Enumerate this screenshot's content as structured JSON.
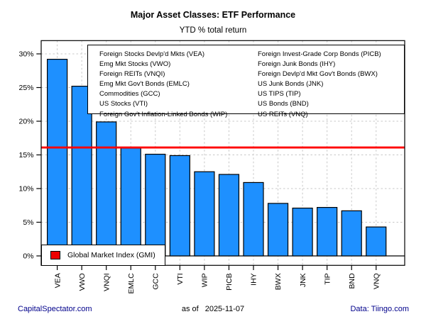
{
  "title": "Major Asset Classes: ETF Performance",
  "subtitle": "YTD % total return",
  "chart_data": {
    "type": "bar",
    "categories": [
      "VEA",
      "VWO",
      "VNQI",
      "EMLC",
      "GCC",
      "VTI",
      "WIP",
      "PICB",
      "IHY",
      "BWX",
      "JNK",
      "TIP",
      "BND",
      "VNQ"
    ],
    "values": [
      29.2,
      25.2,
      19.9,
      16.0,
      15.1,
      14.9,
      12.5,
      12.1,
      10.9,
      7.8,
      7.1,
      7.2,
      6.7,
      4.3
    ],
    "title": "Major Asset Classes: ETF Performance",
    "subtitle": "YTD % total return",
    "xlabel": "",
    "ylabel": "",
    "ylim": [
      -1.4,
      32
    ],
    "yticks": [
      0,
      5,
      10,
      15,
      20,
      25,
      30
    ],
    "ytick_suffix": "%",
    "grid": true,
    "bar_fill": "#1e90ff",
    "bar_stroke": "#000000",
    "grid_color": "#c8c8c8",
    "reference_line": {
      "value": 16.1,
      "color": "#ff0000",
      "label": "Global Market Index (GMI)"
    }
  },
  "asset_legend": {
    "left_column": [
      "Foreign Stocks Devlp'd Mkts (VEA)",
      "Emg Mkt Stocks (VWO)",
      "Foreign REITs (VNQI)",
      "Emg Mkt Gov't Bonds (EMLC)",
      "Commodities (GCC)",
      "US Stocks (VTI)",
      "Foreign Gov't Inflation-Linked Bonds (WIP)"
    ],
    "right_column": [
      "Foreign Invest-Grade Corp Bonds (PICB)",
      "Foreign Junk Bonds (IHY)",
      "Foreign Devlp'd Mkt Gov't Bonds (BWX)",
      "US Junk Bonds (JNK)",
      "US TIPS (TIP)",
      "US Bonds (BND)",
      "US REITs (VNQ)"
    ]
  },
  "gmi_legend": {
    "label": "Global Market Index (GMI)",
    "swatch_color": "#ee0000"
  },
  "footer": {
    "left": "CapitalSpectator.com",
    "center_prefix": "as of",
    "center_date": "2025-11-07",
    "right": "Data: Tiingo.com"
  }
}
